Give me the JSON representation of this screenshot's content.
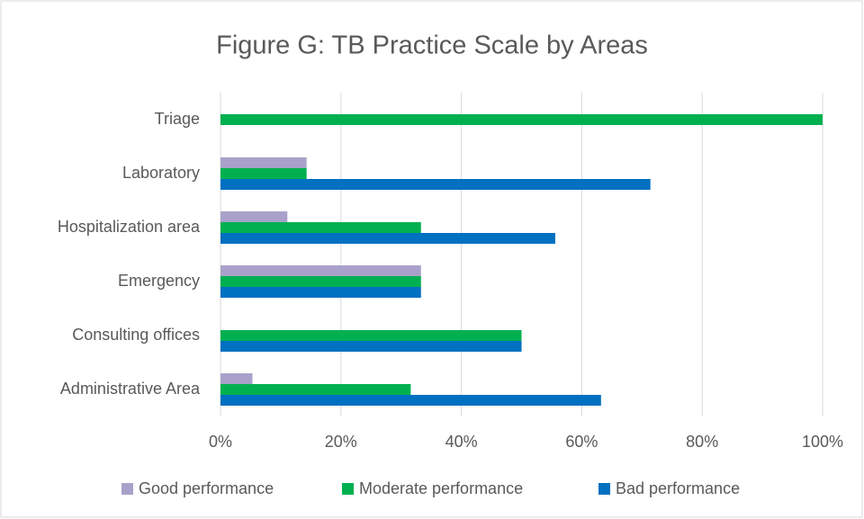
{
  "chart_data": {
    "type": "bar",
    "orientation": "horizontal",
    "title": "Figure G: TB Practice Scale by Areas",
    "categories": [
      "Triage",
      "Laboratory",
      "Hospitalization area",
      "Emergency",
      "Consulting offices",
      "Administrative Area"
    ],
    "series": [
      {
        "name": "Good performance",
        "color": "#a9a1c9",
        "values": [
          0,
          14.3,
          11.1,
          33.3,
          0,
          5.3
        ]
      },
      {
        "name": "Moderate performance",
        "color": "#00b050",
        "values": [
          100,
          14.3,
          33.3,
          33.3,
          50,
          31.6
        ]
      },
      {
        "name": "Bad performance",
        "color": "#0070c0",
        "values": [
          0,
          71.4,
          55.6,
          33.3,
          50,
          63.2
        ]
      }
    ],
    "xlim": [
      0,
      100
    ],
    "xticks": [
      {
        "value": 0,
        "label": "0%"
      },
      {
        "value": 20,
        "label": "20%"
      },
      {
        "value": 40,
        "label": "40%"
      },
      {
        "value": 60,
        "label": "60%"
      },
      {
        "value": 80,
        "label": "80%"
      },
      {
        "value": 100,
        "label": "100%"
      }
    ],
    "grid": true,
    "legend": "bottom"
  }
}
